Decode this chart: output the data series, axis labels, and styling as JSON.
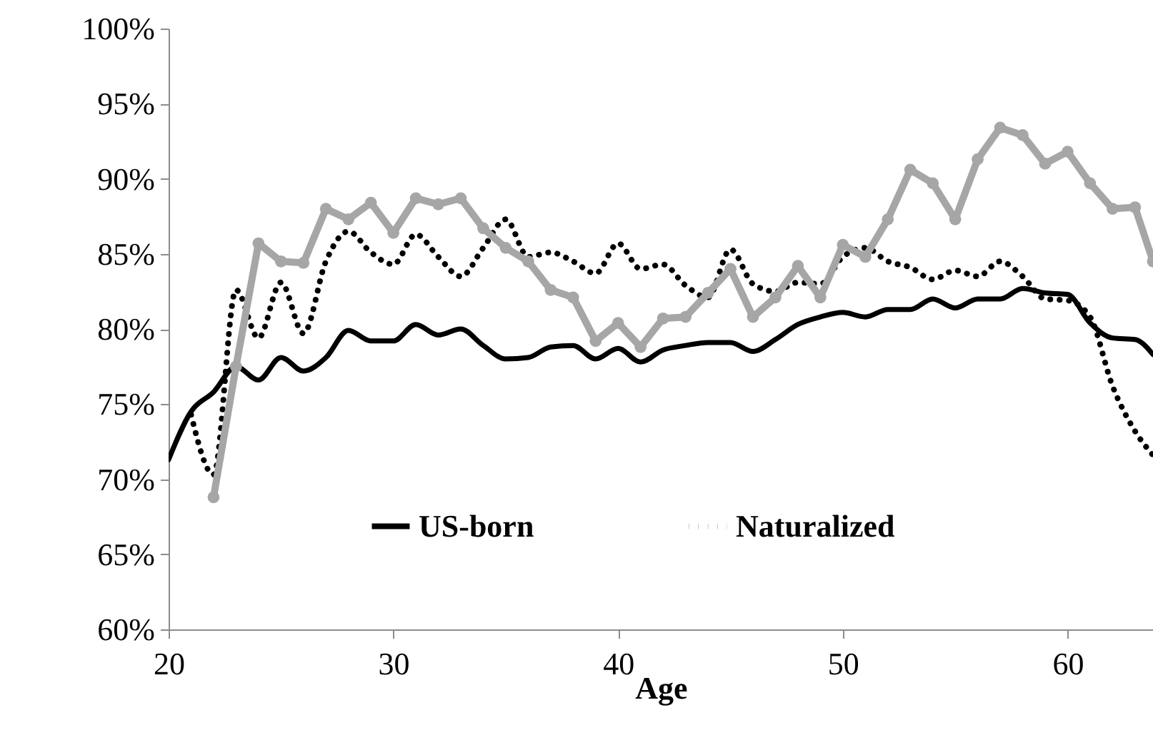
{
  "chart_data": {
    "type": "line",
    "xlabel": "Age",
    "xlim": [
      20,
      63.8
    ],
    "xticks": [
      20,
      30,
      40,
      50,
      60
    ],
    "ylim": [
      60,
      100
    ],
    "yticks": [
      {
        "value": 60,
        "label": "60%"
      },
      {
        "value": 65,
        "label": "65%"
      },
      {
        "value": 70,
        "label": "70%"
      },
      {
        "value": 75,
        "label": "75%"
      },
      {
        "value": 80,
        "label": "80%"
      },
      {
        "value": 85,
        "label": "85%"
      },
      {
        "value": 90,
        "label": "90%"
      },
      {
        "value": 95,
        "label": "95%"
      },
      {
        "value": 100,
        "label": "100%"
      }
    ],
    "grid": false,
    "legend": "bottom",
    "x": [
      20,
      21,
      22,
      23,
      24,
      25,
      26,
      27,
      28,
      29,
      30,
      31,
      32,
      33,
      34,
      35,
      36,
      37,
      38,
      39,
      40,
      41,
      42,
      43,
      44,
      45,
      46,
      47,
      48,
      49,
      50,
      51,
      52,
      53,
      54,
      55,
      56,
      57,
      58,
      59,
      60,
      61,
      62,
      63,
      63.8
    ],
    "series": [
      {
        "name": "US-born",
        "color": "#000000",
        "line_style": "solid",
        "marker": "none",
        "values": [
          71.3,
          74.5,
          75.8,
          77.5,
          76.6,
          78.1,
          77.2,
          78.1,
          79.9,
          79.2,
          79.2,
          80.3,
          79.6,
          80.0,
          78.9,
          78.0,
          78.1,
          78.8,
          78.9,
          78.0,
          78.7,
          77.8,
          78.6,
          78.9,
          79.1,
          79.1,
          78.5,
          79.3,
          80.3,
          80.8,
          81.1,
          80.8,
          81.3,
          81.3,
          82.0,
          81.4,
          82.0,
          82.0,
          82.7,
          82.4,
          82.3,
          80.4,
          79.4,
          79.3,
          78.3
        ]
      },
      {
        "name": "Naturalized",
        "color": "#000000",
        "line_style": "dotted",
        "marker": "none",
        "values": [
          null,
          74.3,
          70.3,
          82.6,
          79.4,
          83.1,
          79.7,
          84.5,
          86.5,
          85.1,
          84.3,
          86.3,
          84.8,
          83.5,
          85.4,
          87.3,
          84.8,
          85.1,
          84.5,
          83.7,
          85.7,
          84.0,
          84.3,
          82.9,
          82.1,
          85.3,
          83.0,
          82.5,
          83.1,
          83.0,
          84.8,
          85.4,
          84.5,
          84.1,
          83.3,
          83.9,
          83.5,
          84.5,
          83.5,
          82.0,
          81.9,
          80.8,
          76.2,
          73.2,
          71.6
        ]
      },
      {
        "color": "#a6a6a6",
        "line_style": "solid",
        "marker": "circle",
        "values": [
          null,
          null,
          68.8,
          77.5,
          85.7,
          84.5,
          84.4,
          88.0,
          87.3,
          88.4,
          86.4,
          88.7,
          88.3,
          88.7,
          86.7,
          85.4,
          84.5,
          82.6,
          82.1,
          79.2,
          80.4,
          78.8,
          80.7,
          80.8,
          82.4,
          84.0,
          80.8,
          82.1,
          84.2,
          82.1,
          85.6,
          84.8,
          87.3,
          90.6,
          89.7,
          87.3,
          91.3,
          93.4,
          92.9,
          91.0,
          91.8,
          89.7,
          88.0,
          88.1,
          84.5
        ]
      }
    ]
  }
}
